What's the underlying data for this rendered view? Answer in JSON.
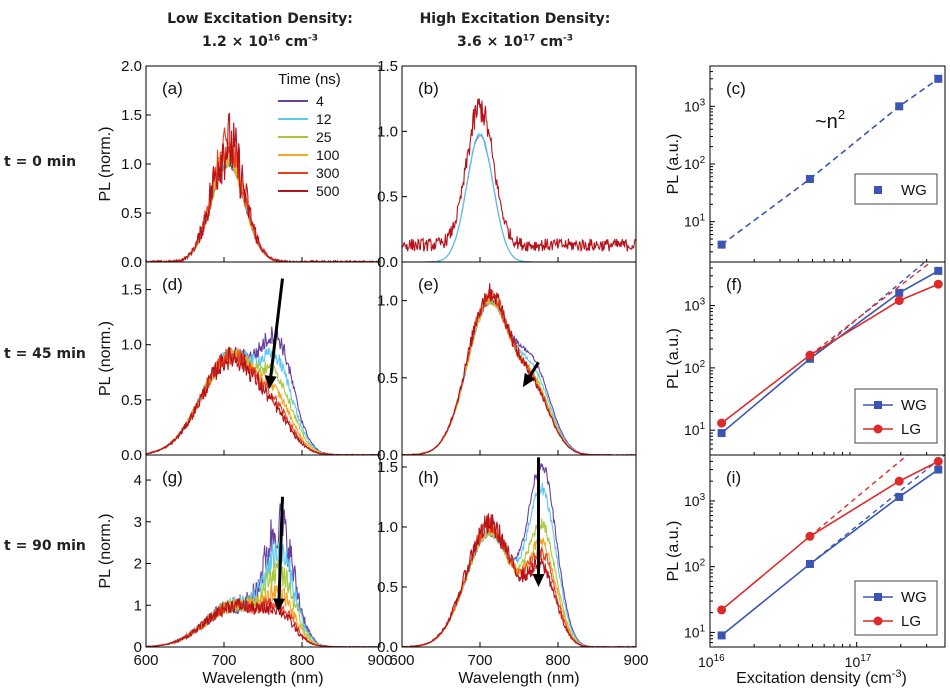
{
  "headers": {
    "low_title": "Low Excitation Density:",
    "low_mant": "1.2 × 10",
    "low_exp": "16",
    "low_unit": " cm",
    "low_unit_exp": "-3",
    "high_title": "High Excitation Density:",
    "high_mant": "3.6 × 10",
    "high_exp": "17",
    "high_unit": " cm",
    "high_unit_exp": "-3"
  },
  "row_labels": [
    "t = 0 min",
    "t = 45 min",
    "t = 90 min"
  ],
  "colors": {
    "time_series": [
      "#6a3fa0",
      "#5bc8f0",
      "#a8c83c",
      "#f5a623",
      "#e8401c",
      "#b5121b"
    ],
    "WG": "#3a55b4",
    "LG": "#e02a2a",
    "arrow": "#000000"
  },
  "chart_data": [
    {
      "type": "line",
      "panel": "a",
      "row": 0,
      "col": 0,
      "xlabel": "",
      "ylabel": "PL (norm.)",
      "xlim": [
        600,
        900
      ],
      "ylim": [
        0,
        2.0
      ],
      "yticks": [
        "0.0",
        "0.5",
        "1.0",
        "1.5",
        "2.0"
      ],
      "xticks": [],
      "legend_title": "Time (ns)",
      "legend_position": "top-right",
      "series": [
        {
          "name": "4",
          "color_index": 0,
          "peaks": [
            [
              705,
              1.0,
              21
            ]
          ],
          "noise": 0.03
        },
        {
          "name": "12",
          "color_index": 1,
          "peaks": [
            [
              705,
              1.02,
              21
            ]
          ],
          "noise": 0.05
        },
        {
          "name": "25",
          "color_index": 2,
          "peaks": [
            [
              705,
              1.05,
              21
            ]
          ],
          "noise": 0.08
        },
        {
          "name": "100",
          "color_index": 3,
          "peaks": [
            [
              705,
              1.1,
              21
            ]
          ],
          "noise": 0.14
        },
        {
          "name": "300",
          "color_index": 4,
          "peaks": [
            [
              705,
              1.15,
              21
            ]
          ],
          "noise": 0.22
        },
        {
          "name": "500",
          "color_index": 5,
          "peaks": [
            [
              705,
              1.2,
              21
            ]
          ],
          "noise": 0.3
        }
      ]
    },
    {
      "type": "line",
      "panel": "b",
      "row": 0,
      "col": 1,
      "xlabel": "",
      "ylabel": "",
      "xlim": [
        600,
        900
      ],
      "ylim": [
        0,
        1.5
      ],
      "yticks": [
        "0.0",
        "0.5",
        "1.0",
        "1.5"
      ],
      "xticks": [],
      "series": [
        {
          "name": "4",
          "color_index": 0,
          "peaks": [
            [
              700,
              0.97,
              17
            ]
          ],
          "noise": 0.01,
          "baseline": 0.0
        },
        {
          "name": "12",
          "color_index": 1,
          "peaks": [
            [
              700,
              0.97,
              17
            ]
          ],
          "noise": 0.02,
          "baseline": 0.0
        },
        {
          "name": "500",
          "color_index": 5,
          "peaks": [
            [
              700,
              1.05,
              17
            ]
          ],
          "noise": 0.1,
          "baseline": 0.13
        }
      ]
    },
    {
      "type": "scatter",
      "panel": "c",
      "row": 0,
      "col": 2,
      "scale": "log",
      "xlabel": "",
      "ylabel": "PL (a.u.)",
      "xlim": [
        1e+16,
        4e+17
      ],
      "ylim": [
        2.0,
        5000
      ],
      "yticks": [
        10,
        100,
        1000
      ],
      "xticks": [],
      "annotation": "~n",
      "annotation_sup": "2",
      "legend_position": "center-right",
      "series": [
        {
          "name": "WG",
          "color_key": "WG",
          "marker": "square",
          "line": "dashed",
          "x": [
            1.2e+16,
            4.8e+16,
            1.95e+17,
            3.6e+17
          ],
          "y": [
            4,
            55,
            1000,
            3000
          ]
        }
      ]
    },
    {
      "type": "line",
      "panel": "d",
      "row": 1,
      "col": 0,
      "xlabel": "",
      "ylabel": "PL (norm.)",
      "xlim": [
        600,
        900
      ],
      "ylim": [
        0,
        1.75
      ],
      "yticks": [
        "0.0",
        "0.5",
        "1.0",
        "1.5"
      ],
      "xticks": [],
      "arrow": {
        "x1": 775,
        "y1": 1.6,
        "x2": 758,
        "y2": 0.6
      },
      "series": [
        {
          "name": "4",
          "color_index": 0,
          "peaks": [
            [
              710,
              0.9,
              38
            ],
            [
              770,
              0.8,
              20
            ]
          ],
          "noise": 0.08
        },
        {
          "name": "12",
          "color_index": 1,
          "peaks": [
            [
              710,
              0.9,
              38
            ],
            [
              770,
              0.6,
              20
            ]
          ],
          "noise": 0.08
        },
        {
          "name": "25",
          "color_index": 2,
          "peaks": [
            [
              710,
              0.9,
              38
            ],
            [
              770,
              0.45,
              20
            ]
          ],
          "noise": 0.08
        },
        {
          "name": "100",
          "color_index": 3,
          "peaks": [
            [
              710,
              0.9,
              38
            ],
            [
              770,
              0.3,
              20
            ]
          ],
          "noise": 0.08
        },
        {
          "name": "300",
          "color_index": 4,
          "peaks": [
            [
              710,
              0.9,
              38
            ],
            [
              770,
              0.2,
              20
            ]
          ],
          "noise": 0.1
        },
        {
          "name": "500",
          "color_index": 5,
          "peaks": [
            [
              710,
              0.88,
              38
            ],
            [
              770,
              0.15,
              20
            ]
          ],
          "noise": 0.12
        }
      ]
    },
    {
      "type": "line",
      "panel": "e",
      "row": 1,
      "col": 1,
      "xlabel": "",
      "ylabel": "",
      "xlim": [
        600,
        900
      ],
      "ylim": [
        0,
        1.25
      ],
      "yticks": [
        "0.0",
        "0.5",
        "1.0"
      ],
      "xticks": [],
      "arrow": {
        "x1": 775,
        "y1": 0.6,
        "x2": 755,
        "y2": 0.44
      },
      "series": [
        {
          "name": "4",
          "color_index": 0,
          "peaks": [
            [
              712,
              0.98,
              28
            ],
            [
              770,
              0.5,
              22
            ]
          ],
          "noise": 0.02
        },
        {
          "name": "12",
          "color_index": 1,
          "peaks": [
            [
              712,
              0.98,
              28
            ],
            [
              770,
              0.45,
              22
            ]
          ],
          "noise": 0.02
        },
        {
          "name": "25",
          "color_index": 2,
          "peaks": [
            [
              712,
              0.98,
              28
            ],
            [
              770,
              0.4,
              22
            ]
          ],
          "noise": 0.03
        },
        {
          "name": "100",
          "color_index": 3,
          "peaks": [
            [
              712,
              1.0,
              28
            ],
            [
              770,
              0.38,
              22
            ]
          ],
          "noise": 0.04
        },
        {
          "name": "300",
          "color_index": 4,
          "peaks": [
            [
              712,
              1.02,
              28
            ],
            [
              770,
              0.37,
              22
            ]
          ],
          "noise": 0.05
        },
        {
          "name": "500",
          "color_index": 5,
          "peaks": [
            [
              712,
              1.04,
              28
            ],
            [
              770,
              0.36,
              22
            ]
          ],
          "noise": 0.06
        }
      ]
    },
    {
      "type": "scatter",
      "panel": "f",
      "row": 1,
      "col": 2,
      "scale": "log",
      "xlabel": "",
      "ylabel": "PL (a.u.)",
      "xlim": [
        1e+16,
        4e+17
      ],
      "ylim": [
        4.0,
        5000
      ],
      "yticks": [
        10,
        100,
        1000
      ],
      "xticks": [],
      "legend_position": "bottom-right",
      "series": [
        {
          "name": "WG",
          "color_key": "WG",
          "marker": "square",
          "line": "solid",
          "x": [
            1.2e+16,
            4.8e+16,
            1.95e+17,
            3.6e+17
          ],
          "y": [
            9,
            140,
            1600,
            3600
          ]
        },
        {
          "name": "LG",
          "color_key": "LG",
          "marker": "circle",
          "line": "solid",
          "x": [
            1.2e+16,
            4.8e+16,
            1.95e+17,
            3.6e+17
          ],
          "y": [
            13,
            160,
            1200,
            2200
          ]
        }
      ]
    },
    {
      "type": "line",
      "panel": "g",
      "row": 2,
      "col": 0,
      "xlabel": "Wavelength (nm)",
      "ylabel": "PL (norm.)",
      "xlim": [
        600,
        900
      ],
      "ylim": [
        0,
        4.6
      ],
      "yticks": [
        "0",
        "1",
        "2",
        "3",
        "4"
      ],
      "xticks": [
        "600",
        "700",
        "800",
        "900"
      ],
      "arrow": {
        "x1": 775,
        "y1": 3.6,
        "x2": 770,
        "y2": 0.85
      },
      "series": [
        {
          "name": "4",
          "color_index": 0,
          "peaks": [
            [
              715,
              1.0,
              38
            ],
            [
              772,
              2.6,
              18
            ]
          ],
          "noise": 0.22
        },
        {
          "name": "12",
          "color_index": 1,
          "peaks": [
            [
              715,
              1.0,
              38
            ],
            [
              772,
              2.0,
              18
            ]
          ],
          "noise": 0.2
        },
        {
          "name": "25",
          "color_index": 2,
          "peaks": [
            [
              715,
              1.0,
              38
            ],
            [
              772,
              1.5,
              18
            ]
          ],
          "noise": 0.18
        },
        {
          "name": "100",
          "color_index": 3,
          "peaks": [
            [
              715,
              1.0,
              38
            ],
            [
              772,
              1.0,
              18
            ]
          ],
          "noise": 0.18
        },
        {
          "name": "300",
          "color_index": 4,
          "peaks": [
            [
              715,
              1.0,
              38
            ],
            [
              772,
              0.7,
              18
            ]
          ],
          "noise": 0.16
        },
        {
          "name": "500",
          "color_index": 5,
          "peaks": [
            [
              715,
              1.0,
              38
            ],
            [
              772,
              0.55,
              18
            ]
          ],
          "noise": 0.18
        }
      ]
    },
    {
      "type": "line",
      "panel": "h",
      "row": 2,
      "col": 1,
      "xlabel": "Wavelength (nm)",
      "ylabel": "",
      "xlim": [
        600,
        900
      ],
      "ylim": [
        0,
        1.6
      ],
      "yticks": [
        "0.0",
        "0.5",
        "1.0",
        "1.5"
      ],
      "xticks": [
        "600",
        "700",
        "800",
        "900"
      ],
      "arrow": {
        "x1": 775,
        "y1": 1.58,
        "x2": 775,
        "y2": 0.5
      },
      "series": [
        {
          "name": "4",
          "color_index": 0,
          "peaks": [
            [
              712,
              0.95,
              30
            ],
            [
              780,
              1.45,
              18
            ]
          ],
          "noise": 0.03
        },
        {
          "name": "12",
          "color_index": 1,
          "peaks": [
            [
              712,
              0.95,
              30
            ],
            [
              780,
              1.25,
              18
            ]
          ],
          "noise": 0.04
        },
        {
          "name": "25",
          "color_index": 2,
          "peaks": [
            [
              712,
              0.95,
              30
            ],
            [
              780,
              0.95,
              18
            ]
          ],
          "noise": 0.05
        },
        {
          "name": "100",
          "color_index": 3,
          "peaks": [
            [
              712,
              0.97,
              30
            ],
            [
              780,
              0.8,
              18
            ]
          ],
          "noise": 0.06
        },
        {
          "name": "300",
          "color_index": 4,
          "peaks": [
            [
              712,
              1.0,
              30
            ],
            [
              780,
              0.7,
              18
            ]
          ],
          "noise": 0.08
        },
        {
          "name": "500",
          "color_index": 5,
          "peaks": [
            [
              712,
              1.02,
              30
            ],
            [
              780,
              0.6,
              18
            ]
          ],
          "noise": 0.1
        }
      ]
    },
    {
      "type": "scatter",
      "panel": "i",
      "row": 2,
      "col": 2,
      "scale": "log",
      "xlabel": "Excitation density (cm",
      "xlabel_sup": "-3",
      "xlabel_end": ")",
      "ylabel": "PL (a.u.)",
      "xlim": [
        1e+16,
        4e+17
      ],
      "ylim": [
        6.0,
        5000
      ],
      "yticks": [
        10,
        100,
        1000
      ],
      "xticks": [
        1e+16,
        1e+17
      ],
      "legend_position": "bottom-right",
      "series": [
        {
          "name": "WG",
          "color_key": "WG",
          "marker": "square",
          "line": "solid",
          "x": [
            1.2e+16,
            4.8e+16,
            1.95e+17,
            3.6e+17
          ],
          "y": [
            9,
            110,
            1150,
            3000
          ]
        },
        {
          "name": "LG",
          "color_key": "LG",
          "marker": "circle",
          "line": "solid",
          "x": [
            1.2e+16,
            4.8e+16,
            1.95e+17,
            3.6e+17
          ],
          "y": [
            22,
            290,
            2000,
            4000
          ]
        }
      ]
    }
  ]
}
